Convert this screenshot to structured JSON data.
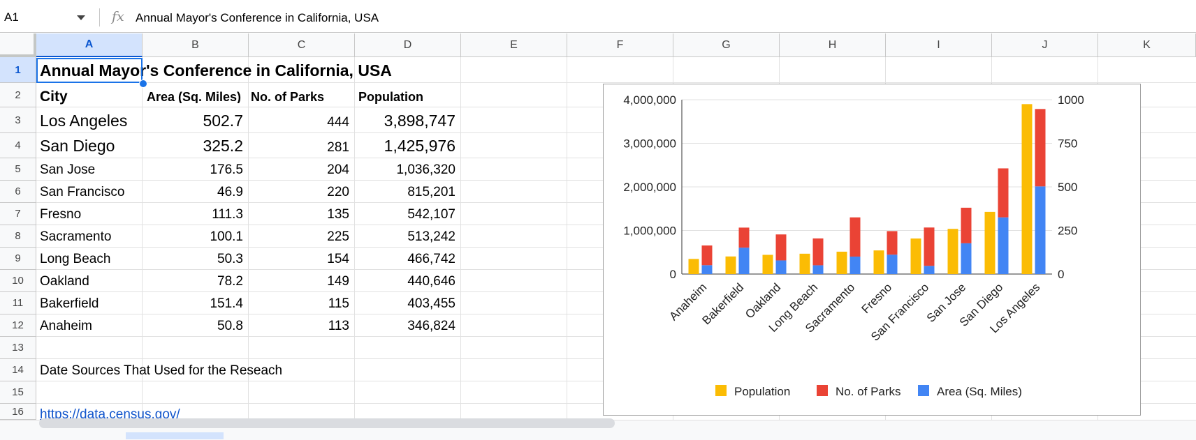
{
  "formula_bar": {
    "name_box": "A1",
    "fx_symbol": "fx",
    "value": "Annual Mayor's Conference in California, USA"
  },
  "columns": [
    "A",
    "B",
    "C",
    "D",
    "E",
    "F",
    "G",
    "H",
    "I",
    "J",
    "K"
  ],
  "rows": [
    "1",
    "2",
    "3",
    "4",
    "5",
    "6",
    "7",
    "8",
    "9",
    "10",
    "11",
    "12",
    "13",
    "14",
    "15",
    "16"
  ],
  "sheet": {
    "title": "Annual Mayor's Conference in California, USA",
    "headers": [
      "City",
      "Area (Sq. Miles)",
      "No. of Parks",
      "Population"
    ],
    "data": [
      [
        "Los Angeles",
        "502.7",
        "444",
        "3,898,747"
      ],
      [
        "San Diego",
        "325.2",
        "281",
        "1,425,976"
      ],
      [
        "San Jose",
        "176.5",
        "204",
        "1,036,320"
      ],
      [
        "San Francisco",
        "46.9",
        "220",
        "815,201"
      ],
      [
        "Fresno",
        "111.3",
        "135",
        "542,107"
      ],
      [
        "Sacramento",
        "100.1",
        "225",
        "513,242"
      ],
      [
        "Long Beach",
        "50.3",
        "154",
        "466,742"
      ],
      [
        "Oakland",
        "78.2",
        "149",
        "440,646"
      ],
      [
        "Bakerfield",
        "151.4",
        "115",
        "403,455"
      ],
      [
        "Anaheim",
        "50.8",
        "113",
        "346,824"
      ]
    ],
    "sources_label": "Date Sources That Used for the Reseach",
    "source_link": "https://data.census.gov/"
  },
  "chart_data": {
    "type": "bar",
    "categories": [
      "Anaheim",
      "Bakerfield",
      "Oakland",
      "Long Beach",
      "Sacramento",
      "Fresno",
      "San Francisco",
      "San Jose",
      "San Diego",
      "Los Angeles"
    ],
    "series": [
      {
        "name": "Population",
        "axis": "left",
        "color": "#fbbc04",
        "values": [
          346824,
          403455,
          440646,
          466742,
          513242,
          542107,
          815201,
          1036320,
          1425976,
          3898747
        ]
      },
      {
        "name": "No. of Parks",
        "axis": "right",
        "stacked": true,
        "color": "#ea4335",
        "values": [
          113,
          115,
          149,
          154,
          225,
          135,
          220,
          204,
          281,
          444
        ]
      },
      {
        "name": "Area (Sq. Miles)",
        "axis": "right",
        "stacked": true,
        "color": "#4285f4",
        "values": [
          50.8,
          151.4,
          78.2,
          50.3,
          100.1,
          111.3,
          46.9,
          176.5,
          325.2,
          502.7
        ]
      }
    ],
    "left_axis": {
      "ylim": [
        0,
        4000000
      ],
      "ticks": [
        "0",
        "1,000,000",
        "2,000,000",
        "3,000,000",
        "4,000,000"
      ]
    },
    "right_axis": {
      "ylim": [
        0,
        1000
      ],
      "ticks": [
        "0",
        "250",
        "500",
        "750",
        "1000"
      ]
    },
    "legend": [
      "Population",
      "No. of Parks",
      "Area (Sq. Miles)"
    ],
    "legend_position": "bottom",
    "grid": true
  }
}
